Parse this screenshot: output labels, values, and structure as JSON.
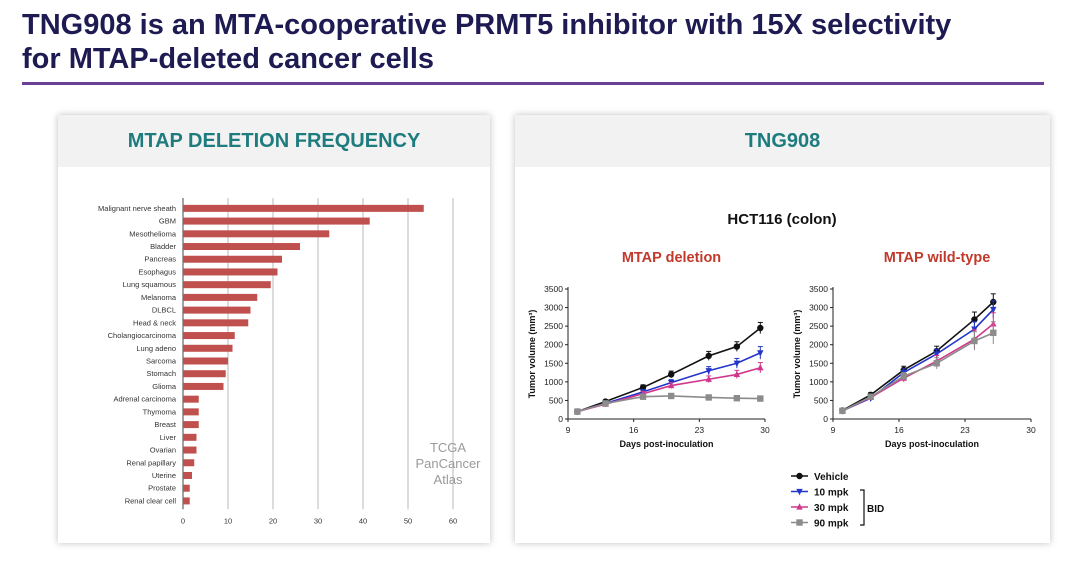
{
  "slide": {
    "title_line1": "TNG908 is an MTA-cooperative PRMT5 inhibitor with 15X selectivity",
    "title_line2": "for MTAP-deleted cancer cells",
    "accent_color": "#6a3f96",
    "title_color": "#1e1a52"
  },
  "left_panel": {
    "header": "MTAP DELETION FREQUENCY"
  },
  "right_panel": {
    "header": "TNG908",
    "subtitle": "HCT116 (colon)",
    "legend_group_label": "BID"
  },
  "chart_data": [
    {
      "type": "bar",
      "orientation": "horizontal",
      "title": "MTAP DELETION FREQUENCY",
      "categories": [
        "Malignant nerve sheath",
        "GBM",
        "Mesothelioma",
        "Bladder",
        "Pancreas",
        "Esophagus",
        "Lung squamous",
        "Melanoma",
        "DLBCL",
        "Head & neck",
        "Cholangiocarcinoma",
        "Lung adeno",
        "Sarcoma",
        "Stomach",
        "Glioma",
        "Adrenal carcinoma",
        "Thymoma",
        "Breast",
        "Liver",
        "Ovarian",
        "Renal papillary",
        "Uterine",
        "Prostate",
        "Renal clear cell"
      ],
      "values": [
        53.5,
        41.5,
        32.5,
        26,
        22,
        21,
        19.5,
        16.5,
        15,
        14.5,
        11.5,
        11,
        10,
        9.5,
        9,
        3.5,
        3.5,
        3.5,
        3,
        3,
        2.5,
        2,
        1.5,
        1.5
      ],
      "xticks": [
        0,
        10,
        20,
        30,
        40,
        50,
        60
      ],
      "xlim": [
        0,
        60
      ],
      "bar_color": "#c0504d",
      "annotation": [
        "TCGA",
        "PanCancer",
        "Atlas"
      ]
    },
    {
      "type": "line",
      "title": "MTAP deletion",
      "title_color": "#c0392b",
      "xlabel": "Days post-inoculation",
      "ylabel": "Tumor volume (mm³)",
      "xlim": [
        9,
        30
      ],
      "ylim": [
        0,
        3500
      ],
      "xticks": [
        9,
        16,
        23,
        30
      ],
      "yticks": [
        0,
        500,
        1000,
        1500,
        2000,
        2500,
        3000,
        3500
      ],
      "series": [
        {
          "name": "Vehicle",
          "color": "#111111",
          "marker": "circle",
          "x": [
            10,
            13,
            17,
            20,
            24,
            27,
            29.5
          ],
          "y": [
            200,
            470,
            850,
            1200,
            1700,
            1950,
            2450
          ],
          "err": [
            30,
            40,
            70,
            90,
            120,
            130,
            150
          ]
        },
        {
          "name": "10 mpk",
          "color": "#2336c9",
          "marker": "triangle-down",
          "x": [
            10,
            13,
            17,
            20,
            24,
            27,
            29.5
          ],
          "y": [
            200,
            420,
            730,
            980,
            1300,
            1500,
            1780
          ],
          "err": [
            30,
            40,
            60,
            80,
            110,
            130,
            170
          ]
        },
        {
          "name": "30 mpk",
          "color": "#d1368c",
          "marker": "triangle-up",
          "x": [
            10,
            13,
            17,
            20,
            24,
            27,
            29.5
          ],
          "y": [
            200,
            400,
            680,
            900,
            1070,
            1200,
            1380
          ],
          "err": [
            30,
            40,
            60,
            80,
            90,
            110,
            140
          ]
        },
        {
          "name": "90 mpk",
          "color": "#8c8c8c",
          "marker": "square",
          "x": [
            10,
            13,
            17,
            20,
            24,
            27,
            29.5
          ],
          "y": [
            200,
            420,
            600,
            620,
            580,
            560,
            550
          ],
          "err": [
            30,
            40,
            50,
            50,
            50,
            50,
            50
          ]
        }
      ]
    },
    {
      "type": "line",
      "title": "MTAP wild-type",
      "title_color": "#c0392b",
      "xlabel": "Days post-inoculation",
      "ylabel": "Tumor volume (mm³)",
      "xlim": [
        9,
        30
      ],
      "ylim": [
        0,
        3500
      ],
      "xticks": [
        9,
        16,
        23,
        30
      ],
      "yticks": [
        0,
        500,
        1000,
        1500,
        2000,
        2500,
        3000,
        3500
      ],
      "series": [
        {
          "name": "Vehicle",
          "color": "#111111",
          "marker": "circle",
          "x": [
            10,
            13,
            16.5,
            20,
            24,
            26
          ],
          "y": [
            230,
            650,
            1320,
            1830,
            2680,
            3150
          ],
          "err": [
            40,
            60,
            100,
            130,
            200,
            220
          ]
        },
        {
          "name": "10 mpk",
          "color": "#2336c9",
          "marker": "triangle-down",
          "x": [
            10,
            13,
            16.5,
            20,
            24,
            26
          ],
          "y": [
            220,
            560,
            1250,
            1750,
            2420,
            2950
          ],
          "err": [
            40,
            60,
            100,
            130,
            200,
            230
          ]
        },
        {
          "name": "30 mpk",
          "color": "#d1368c",
          "marker": "triangle-up",
          "x": [
            10,
            13,
            16.5,
            20,
            24,
            26
          ],
          "y": [
            220,
            580,
            1100,
            1560,
            2150,
            2560
          ],
          "err": [
            40,
            60,
            100,
            150,
            250,
            300
          ]
        },
        {
          "name": "90 mpk",
          "color": "#8c8c8c",
          "marker": "square",
          "x": [
            10,
            13,
            16.5,
            20,
            24,
            26
          ],
          "y": [
            220,
            600,
            1150,
            1500,
            2100,
            2320
          ],
          "err": [
            40,
            60,
            100,
            150,
            250,
            300
          ]
        }
      ]
    }
  ]
}
